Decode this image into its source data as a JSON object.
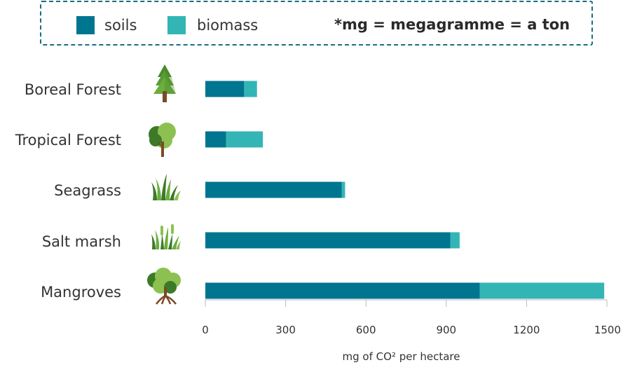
{
  "legend": {
    "soils_label": "soils",
    "biomass_label": "biomass",
    "note": "*mg = megagramme = a ton"
  },
  "colors": {
    "soils": "#007590",
    "biomass": "#33b5b5",
    "border": "#1a6e7e"
  },
  "icons": [
    "conifer-tree-icon",
    "broadleaf-tree-icon",
    "seagrass-icon",
    "salt-marsh-grass-icon",
    "mangrove-tree-icon"
  ],
  "chart_data": {
    "type": "bar",
    "orientation": "horizontal",
    "stacked": true,
    "categories": [
      "Boreal Forest",
      "Tropical Forest",
      "Seagrass",
      "Salt marsh",
      "Mangroves"
    ],
    "series": [
      {
        "name": "soils",
        "values": [
          145,
          78,
          510,
          915,
          1025
        ]
      },
      {
        "name": "biomass",
        "values": [
          48,
          137,
          12,
          35,
          465
        ]
      }
    ],
    "xlabel": "mg of CO² per hectare",
    "xlim": [
      0,
      1500
    ],
    "xticks": [
      "0",
      "300",
      "600",
      "900",
      "1200",
      "1500"
    ],
    "grid": false,
    "legend_position": "top"
  }
}
